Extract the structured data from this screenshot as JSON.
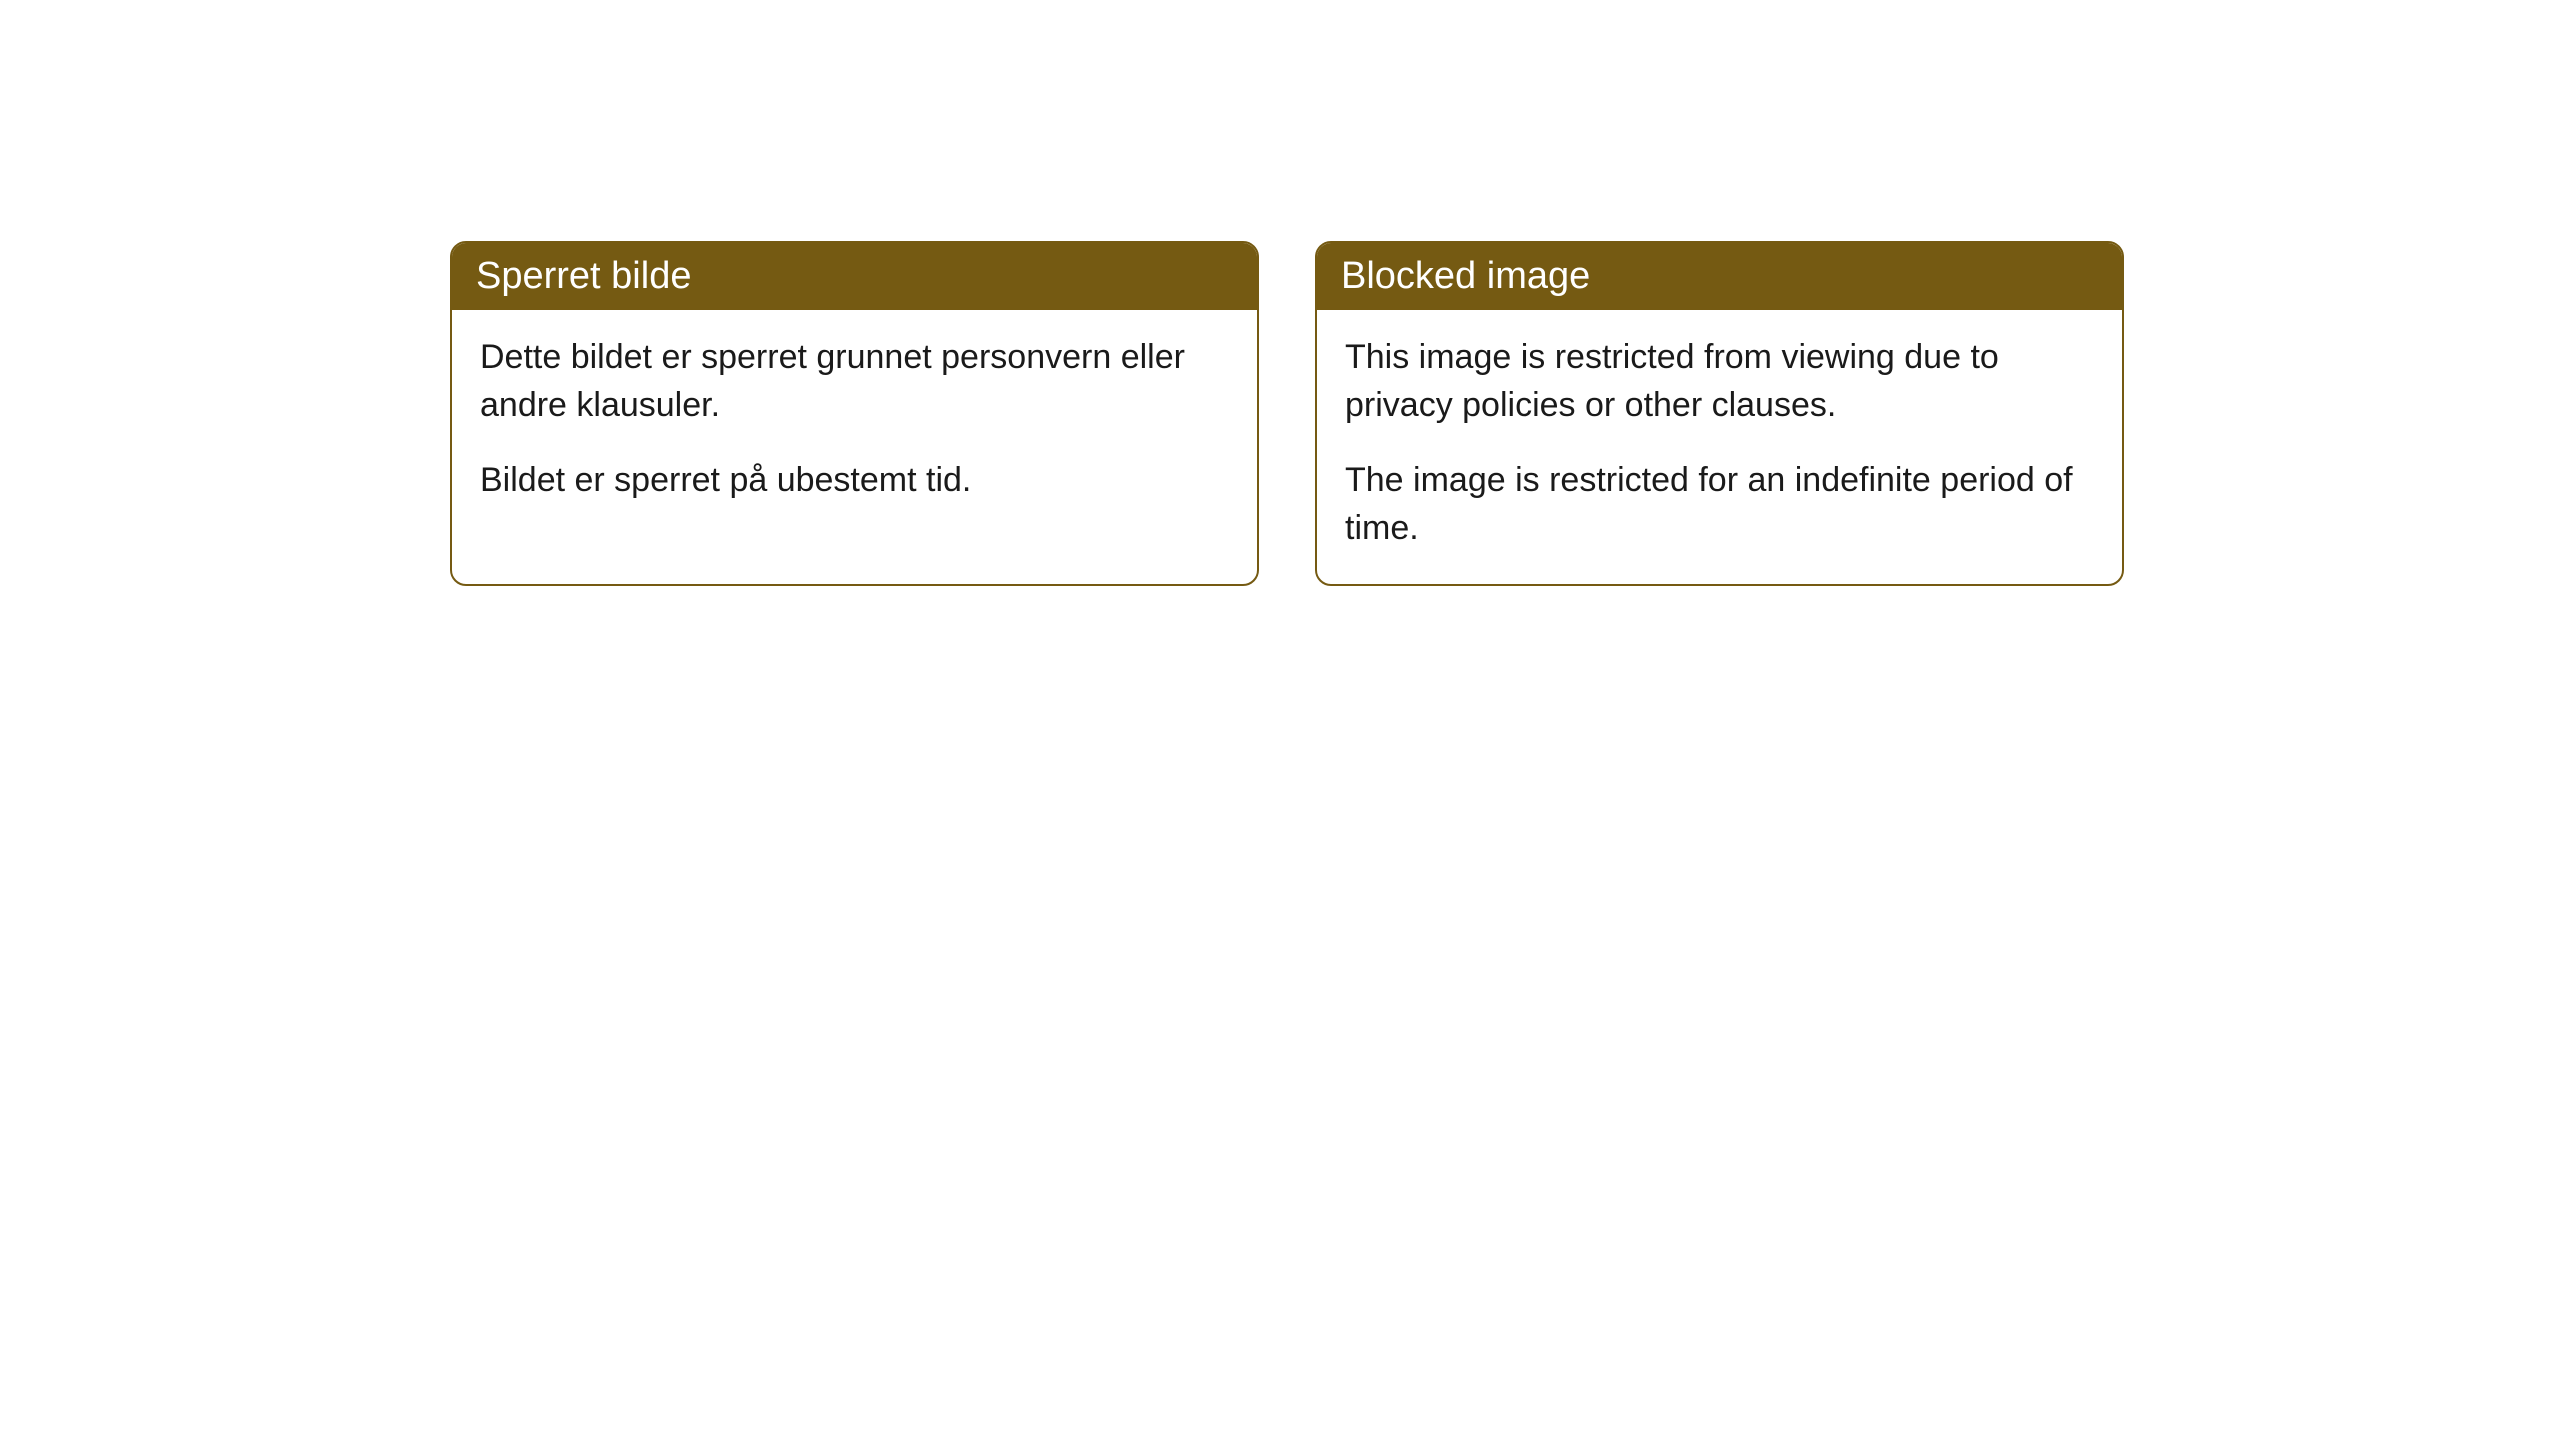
{
  "cards": [
    {
      "title": "Sperret bilde",
      "paragraph1": "Dette bildet er sperret grunnet personvern eller andre klausuler.",
      "paragraph2": "Bildet er sperret på ubestemt tid."
    },
    {
      "title": "Blocked image",
      "paragraph1": "This image is restricted from viewing due to privacy policies or other clauses.",
      "paragraph2": "The image is restricted for an indefinite period of time."
    }
  ],
  "styling": {
    "header_background": "#755a12",
    "header_text_color": "#ffffff",
    "border_color": "#755a12",
    "body_text_color": "#1a1a1a",
    "card_background": "#ffffff",
    "page_background": "#ffffff",
    "border_radius": 16,
    "title_fontsize": 38,
    "body_fontsize": 34
  }
}
